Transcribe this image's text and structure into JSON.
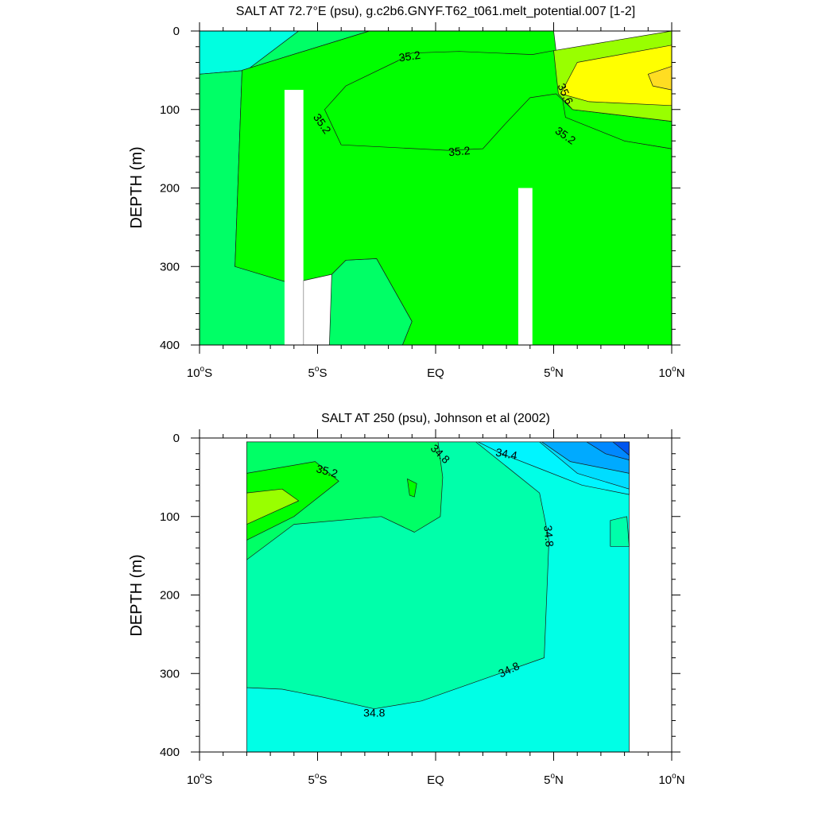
{
  "chart_data": [
    {
      "type": "contour",
      "title": "SALT AT  72.7°E (psu), g.c2b6.GNYF.T62_t061.melt_potential.007 [1-2]",
      "xlabel": "",
      "ylabel": "DEPTH (m)",
      "xlim": [
        -10,
        10
      ],
      "ylim": [
        400,
        0
      ],
      "x_ticks": [
        {
          "value": -10,
          "deg": "10",
          "hem": "S"
        },
        {
          "value": -5,
          "deg": "5",
          "hem": "S"
        },
        {
          "value": 0,
          "deg": "",
          "hem": "EQ"
        },
        {
          "value": 5,
          "deg": "5",
          "hem": "N"
        },
        {
          "value": 10,
          "deg": "10",
          "hem": "N"
        }
      ],
      "y_ticks": [
        0,
        100,
        200,
        300,
        400
      ],
      "contour_labels": [
        {
          "text": "35.2",
          "lat": -1.1,
          "depth": 32,
          "angle": -8
        },
        {
          "text": "35.2",
          "lat": -4.8,
          "depth": 118,
          "angle": 55
        },
        {
          "text": "35.2",
          "lat": 1.0,
          "depth": 153,
          "angle": -5
        },
        {
          "text": "35.2",
          "lat": 5.5,
          "depth": 133,
          "angle": 35
        },
        {
          "text": "35.6",
          "lat": 5.5,
          "depth": 80,
          "angle": 65
        }
      ],
      "filled_regions": [
        {
          "salinity": "34.9-35.0",
          "color": "#00ffe0",
          "points": [
            [
              -10,
              0
            ],
            [
              -5.8,
              0
            ],
            [
              -8,
              50
            ],
            [
              -10,
              55
            ]
          ]
        },
        {
          "salinity": "35.0-35.2",
          "color": "#00ff66",
          "points": [
            [
              -5.8,
              0
            ],
            [
              -2.8,
              0
            ],
            [
              -8.2,
              50
            ],
            [
              -8.5,
              300
            ],
            [
              -5.6,
              315
            ],
            [
              -5.6,
              400
            ],
            [
              -10,
              400
            ],
            [
              -10,
              55
            ],
            [
              -8,
              50
            ]
          ]
        },
        {
          "salinity": "35.0-35.2",
          "color": "#00ff66",
          "points": [
            [
              -4.4,
              310
            ],
            [
              -3.8,
              292
            ],
            [
              -2.5,
              290
            ],
            [
              -1,
              370
            ],
            [
              -1.4,
              400
            ],
            [
              -4.5,
              400
            ]
          ]
        },
        {
          "salinity": "35.2-35.4",
          "color": "#00ff00",
          "points": [
            [
              -2.8,
              0
            ],
            [
              5,
              0
            ],
            [
              5.2,
              50
            ],
            [
              5.7,
              100
            ],
            [
              8,
              140
            ],
            [
              10,
              150
            ],
            [
              10,
              400
            ],
            [
              -1.4,
              400
            ],
            [
              -1,
              370
            ],
            [
              -2.5,
              290
            ],
            [
              -3.8,
              292
            ],
            [
              -4.4,
              310
            ],
            [
              -5.6,
              318
            ],
            [
              -5.6,
              400
            ],
            [
              -6.3,
              400
            ],
            [
              -6.3,
              320
            ],
            [
              -8.5,
              300
            ],
            [
              -8.2,
              50
            ]
          ]
        },
        {
          "salinity": "35.2-35.4",
          "color": "#00ff00",
          "points": [
            [
              -3.8,
              70
            ],
            [
              -1.6,
              38
            ],
            [
              -1,
              28
            ],
            [
              1,
              26
            ],
            [
              4.1,
              30
            ],
            [
              5,
              25
            ],
            [
              5.2,
              55
            ],
            [
              5.5,
              110
            ],
            [
              8,
              140
            ],
            [
              10,
              150
            ],
            [
              10,
              115
            ],
            [
              5.8,
              100
            ],
            [
              5.1,
              80
            ],
            [
              4,
              85
            ],
            [
              2.9,
              120
            ],
            [
              2,
              150
            ],
            [
              0.5,
              152
            ],
            [
              -4,
              145
            ],
            [
              -4.7,
              100
            ]
          ]
        },
        {
          "salinity": "35.4-35.6",
          "color": "#99ff00",
          "points": [
            [
              5,
              25
            ],
            [
              10,
              0
            ],
            [
              10,
              115
            ],
            [
              5.8,
              100
            ],
            [
              5.2,
              80
            ]
          ]
        },
        {
          "salinity": "35.6-35.8",
          "color": "#ffff00",
          "points": [
            [
              6,
              40
            ],
            [
              10,
              18
            ],
            [
              10,
              95
            ],
            [
              6.5,
              90
            ],
            [
              5.3,
              80
            ]
          ]
        },
        {
          "salinity": "35.8-36.0",
          "color": "#ffdd22",
          "points": [
            [
              9,
              55
            ],
            [
              10,
              45
            ],
            [
              10,
              75
            ],
            [
              9.2,
              70
            ]
          ]
        }
      ],
      "masked_bars": [
        {
          "lat_from": -6.4,
          "lat_to": -5.6,
          "depth_from": 75,
          "depth_to": 400
        },
        {
          "lat_from": 3.5,
          "lat_to": 4.1,
          "depth_from": 200,
          "depth_to": 400
        }
      ]
    },
    {
      "type": "contour",
      "title": "SALT AT 250 (psu), Johnson et al (2002)",
      "xlabel": "",
      "ylabel": "DEPTH (m)",
      "xlim": [
        -10,
        10
      ],
      "ylim": [
        400,
        0
      ],
      "data_lat_range": [
        -8,
        8.2
      ],
      "data_depth_range": [
        5,
        400
      ],
      "x_ticks": [
        {
          "value": -10,
          "deg": "10",
          "hem": "S"
        },
        {
          "value": -5,
          "deg": "5",
          "hem": "S"
        },
        {
          "value": 0,
          "deg": "",
          "hem": "EQ"
        },
        {
          "value": 5,
          "deg": "5",
          "hem": "N"
        },
        {
          "value": 10,
          "deg": "10",
          "hem": "N"
        }
      ],
      "y_ticks": [
        0,
        100,
        200,
        300,
        400
      ],
      "contour_labels": [
        {
          "text": "34.8",
          "lat": 0.2,
          "depth": 20,
          "angle": 45
        },
        {
          "text": "35.2",
          "lat": -4.6,
          "depth": 42,
          "angle": 15
        },
        {
          "text": "34.4",
          "lat": 3,
          "depth": 20,
          "angle": 10
        },
        {
          "text": "34.8",
          "lat": 4.8,
          "depth": 125,
          "angle": 85
        },
        {
          "text": "34.8",
          "lat": 3.1,
          "depth": 295,
          "angle": -25
        },
        {
          "text": "34.8",
          "lat": -2.6,
          "depth": 350,
          "angle": 0
        }
      ],
      "filled_regions": [
        {
          "salinity": "34.6-34.8",
          "color": "#00ffe6",
          "points": [
            [
              -8,
              5
            ],
            [
              8.2,
              5
            ],
            [
              8.2,
              400
            ],
            [
              -8,
              400
            ]
          ]
        },
        {
          "salinity": "34.8-35.0",
          "color": "#00ffaa",
          "points": [
            [
              -8,
              5
            ],
            [
              1.7,
              5
            ],
            [
              4.4,
              70
            ],
            [
              4.8,
              130
            ],
            [
              4.6,
              280
            ],
            [
              2.7,
              300
            ],
            [
              -0.6,
              335
            ],
            [
              -2.6,
              345
            ],
            [
              -4.8,
              330
            ],
            [
              -6.5,
              320
            ],
            [
              -8,
              318
            ]
          ]
        },
        {
          "salinity": "34.8-35.0",
          "color": "#00ffaa",
          "points": [
            [
              7.4,
              105
            ],
            [
              8.1,
              100
            ],
            [
              8.2,
              138
            ],
            [
              7.4,
              138
            ]
          ]
        },
        {
          "salinity": "35.0-35.2",
          "color": "#00ff66",
          "points": [
            [
              -8,
              5
            ],
            [
              0.1,
              5
            ],
            [
              0.3,
              50
            ],
            [
              0.2,
              100
            ],
            [
              -0.9,
              120
            ],
            [
              -2.3,
              100
            ],
            [
              -6,
              110
            ],
            [
              -8,
              155
            ]
          ]
        },
        {
          "salinity": "35.2-35.4",
          "color": "#00ff00",
          "points": [
            [
              -8,
              45
            ],
            [
              -5.1,
              30
            ],
            [
              -4.1,
              55
            ],
            [
              -6,
              100
            ],
            [
              -8,
              130
            ]
          ]
        },
        {
          "salinity": "35.2-35.4",
          "color": "#00ff00",
          "points": [
            [
              -1.2,
              52
            ],
            [
              -0.8,
              58
            ],
            [
              -0.9,
              75
            ],
            [
              -1.1,
              73
            ]
          ]
        },
        {
          "salinity": "35.4-35.6",
          "color": "#99ff00",
          "points": [
            [
              -8,
              70
            ],
            [
              -6.5,
              65
            ],
            [
              -5.8,
              80
            ],
            [
              -8,
              110
            ]
          ]
        },
        {
          "salinity": "34.4-34.6",
          "color": "#00f5ff",
          "points": [
            [
              1.8,
              5
            ],
            [
              8.2,
              5
            ],
            [
              8.2,
              72
            ],
            [
              6.2,
              60
            ],
            [
              4.5,
              40
            ],
            [
              2.8,
              20
            ]
          ]
        },
        {
          "salinity": "34.2-34.4",
          "color": "#00ddff",
          "points": [
            [
              4.4,
              5
            ],
            [
              8.2,
              5
            ],
            [
              8.2,
              65
            ],
            [
              6,
              45
            ]
          ]
        },
        {
          "salinity": "34.0-34.2",
          "color": "#00aaff",
          "points": [
            [
              4.5,
              5
            ],
            [
              8.2,
              5
            ],
            [
              8.2,
              45
            ],
            [
              5.7,
              30
            ]
          ]
        },
        {
          "salinity": "33.8-34.0",
          "color": "#0088ff",
          "points": [
            [
              6.4,
              5
            ],
            [
              8.2,
              5
            ],
            [
              8.2,
              28
            ],
            [
              7.2,
              20
            ]
          ]
        },
        {
          "salinity": "33.6-33.8",
          "color": "#0055ee",
          "points": [
            [
              7.5,
              5
            ],
            [
              8.2,
              5
            ],
            [
              8.2,
              22
            ],
            [
              7.8,
              12
            ]
          ]
        }
      ]
    }
  ]
}
